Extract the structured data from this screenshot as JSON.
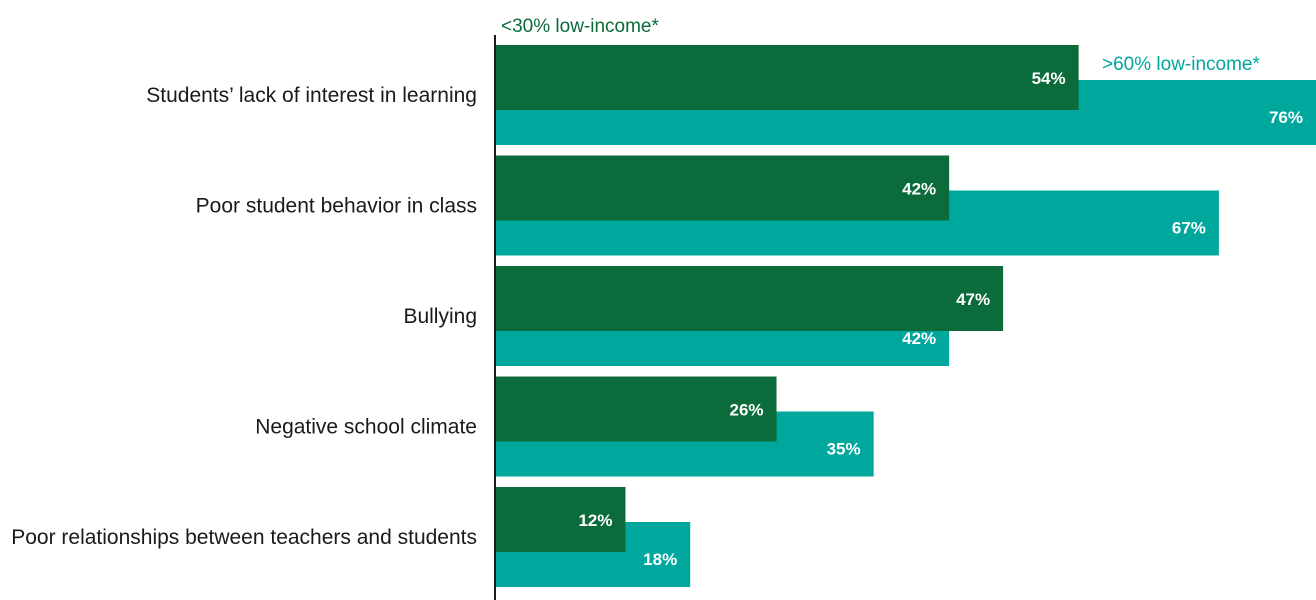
{
  "chart_data": {
    "type": "bar",
    "orientation": "horizontal",
    "categories": [
      "Students’ lack of interest in learning",
      "Poor student behavior in class",
      "Bullying",
      "Negative school climate",
      "Poor relationships between teachers and students"
    ],
    "series": [
      {
        "name": "<30% low-income*",
        "color": "#0b6b3a",
        "values": [
          54,
          42,
          47,
          26,
          12
        ],
        "labels": [
          "54%",
          "42%",
          "47%",
          "26%",
          "12%"
        ]
      },
      {
        "name": ">60% low-income*",
        "color": "#00a79d",
        "values": [
          76,
          67,
          42,
          35,
          18
        ],
        "labels": [
          "76%",
          "67%",
          "42%",
          "35%",
          "18%"
        ]
      }
    ],
    "xlim": [
      0,
      76
    ],
    "grid": false,
    "legend": "inline"
  }
}
